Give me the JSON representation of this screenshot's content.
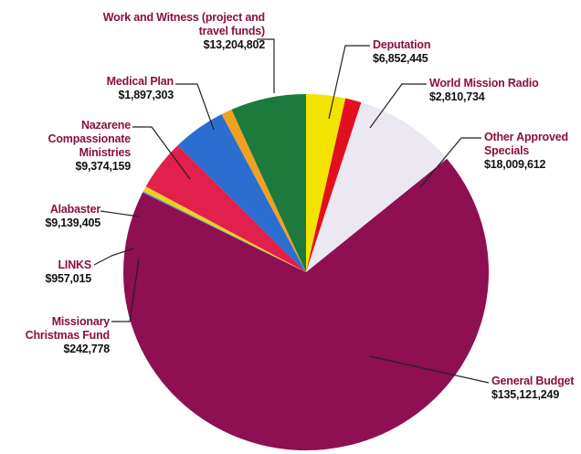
{
  "chart_data": {
    "type": "pie",
    "categories": [
      "Deputation",
      "World Mission Radio",
      "Other Approved Specials",
      "General Budget",
      "Missionary Christmas Fund",
      "LINKS",
      "Alabaster",
      "Nazarene Compassionate Ministries",
      "Medical Plan",
      "Work and Witness (project and travel funds)"
    ],
    "values": [
      6852445,
      2810734,
      18009612,
      135121249,
      242778,
      957015,
      9139405,
      9374159,
      1897303,
      13204802
    ],
    "value_labels": [
      "$6,852,445",
      "$2,810,734",
      "$18,009,612",
      "$135,121,249",
      "$242,778",
      "$957,015",
      "$9,139,405",
      "$9,374,159",
      "$1,897,303",
      "$13,204,802"
    ],
    "colors": [
      "#f2e400",
      "#e2101e",
      "#ece8f2",
      "#8e0f52",
      "#4a92d4",
      "#f0d020",
      "#e2204c",
      "#2a6ed2",
      "#f2a020",
      "#1b7a3c"
    ]
  }
}
